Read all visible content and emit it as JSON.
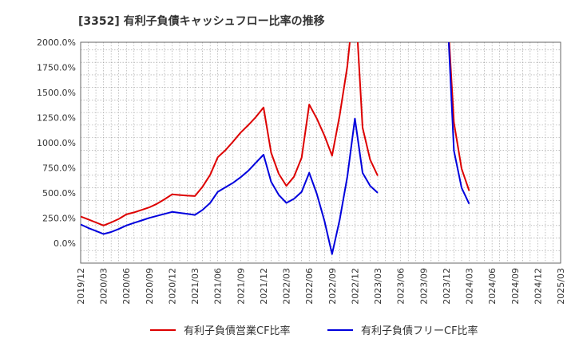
{
  "chart_data": {
    "type": "line",
    "title": "[3352]  有利子負債キャッシュフロー比率の推移",
    "xlabel": "",
    "ylabel": "",
    "ylim": [
      -200,
      2000
    ],
    "yticks": [
      0,
      250,
      500,
      750,
      1000,
      1250,
      1500,
      1750,
      2000
    ],
    "ytick_labels": [
      "0.0%",
      "250.0%",
      "500.0%",
      "750.0%",
      "1000.0%",
      "1250.0%",
      "1500.0%",
      "1750.0%",
      "2000.0%"
    ],
    "xtick_labels": [
      "2019/12",
      "2020/03",
      "2020/06",
      "2020/09",
      "2020/12",
      "2021/03",
      "2021/06",
      "2021/09",
      "2021/12",
      "2022/03",
      "2022/06",
      "2022/09",
      "2022/12",
      "2023/03",
      "2023/06",
      "2023/09",
      "2023/12",
      "2024/03",
      "2024/06",
      "2024/09",
      "2024/12",
      "2025/03"
    ],
    "grid": true,
    "legend_position": "bottom",
    "series": [
      {
        "name": "有利子負債営業CF比率",
        "color": "#dd0000",
        "points": [
          [
            "2019/12",
            265
          ],
          [
            "2020/01",
            235
          ],
          [
            "2020/02",
            205
          ],
          [
            "2020/03",
            175
          ],
          [
            "2020/04",
            205
          ],
          [
            "2020/05",
            240
          ],
          [
            "2020/06",
            285
          ],
          [
            "2020/07",
            305
          ],
          [
            "2020/08",
            330
          ],
          [
            "2020/09",
            355
          ],
          [
            "2020/10",
            390
          ],
          [
            "2020/11",
            435
          ],
          [
            "2020/12",
            485
          ],
          [
            "2021/01",
            478
          ],
          [
            "2021/02",
            472
          ],
          [
            "2021/03",
            468
          ],
          [
            "2021/04",
            560
          ],
          [
            "2021/05",
            680
          ],
          [
            "2021/06",
            855
          ],
          [
            "2021/07",
            925
          ],
          [
            "2021/08",
            1010
          ],
          [
            "2021/09",
            1100
          ],
          [
            "2021/10",
            1175
          ],
          [
            "2021/11",
            1255
          ],
          [
            "2021/12",
            1350
          ],
          [
            "2022/01",
            900
          ],
          [
            "2022/02",
            690
          ],
          [
            "2022/03",
            570
          ],
          [
            "2022/04",
            660
          ],
          [
            "2022/05",
            850
          ],
          [
            "2022/06",
            1380
          ],
          [
            "2022/07",
            1240
          ],
          [
            "2022/08",
            1070
          ],
          [
            "2022/09",
            870
          ],
          [
            "2022/10",
            1270
          ],
          [
            "2022/11",
            1760
          ],
          [
            "2022/12",
            2500
          ],
          [
            "2023/01",
            1150
          ],
          [
            "2023/02",
            830
          ],
          [
            "2023/03",
            670
          ]
        ],
        "points_segment2": [
          [
            "2023/12",
            2500
          ],
          [
            "2024/01",
            1200
          ],
          [
            "2024/02",
            740
          ],
          [
            "2024/03",
            520
          ]
        ]
      },
      {
        "name": "有利子負債フリーCF比率",
        "color": "#0000dd",
        "points": [
          [
            "2019/12",
            185
          ],
          [
            "2020/01",
            150
          ],
          [
            "2020/02",
            120
          ],
          [
            "2020/03",
            90
          ],
          [
            "2020/04",
            110
          ],
          [
            "2020/05",
            140
          ],
          [
            "2020/06",
            175
          ],
          [
            "2020/07",
            200
          ],
          [
            "2020/08",
            225
          ],
          [
            "2020/09",
            250
          ],
          [
            "2020/10",
            270
          ],
          [
            "2020/11",
            290
          ],
          [
            "2020/12",
            310
          ],
          [
            "2021/01",
            300
          ],
          [
            "2021/02",
            290
          ],
          [
            "2021/03",
            280
          ],
          [
            "2021/04",
            330
          ],
          [
            "2021/05",
            400
          ],
          [
            "2021/06",
            510
          ],
          [
            "2021/07",
            555
          ],
          [
            "2021/08",
            600
          ],
          [
            "2021/09",
            655
          ],
          [
            "2021/10",
            720
          ],
          [
            "2021/11",
            800
          ],
          [
            "2021/12",
            880
          ],
          [
            "2022/01",
            610
          ],
          [
            "2022/02",
            480
          ],
          [
            "2022/03",
            400
          ],
          [
            "2022/04",
            440
          ],
          [
            "2022/05",
            510
          ],
          [
            "2022/06",
            700
          ],
          [
            "2022/07",
            490
          ],
          [
            "2022/08",
            220
          ],
          [
            "2022/09",
            -110
          ],
          [
            "2022/10",
            230
          ],
          [
            "2022/11",
            660
          ],
          [
            "2022/12",
            1240
          ],
          [
            "2023/01",
            700
          ],
          [
            "2023/02",
            570
          ],
          [
            "2023/03",
            500
          ]
        ],
        "points_segment2": [
          [
            "2023/12",
            2500
          ],
          [
            "2024/01",
            920
          ],
          [
            "2024/02",
            550
          ],
          [
            "2024/03",
            390
          ]
        ]
      }
    ]
  }
}
